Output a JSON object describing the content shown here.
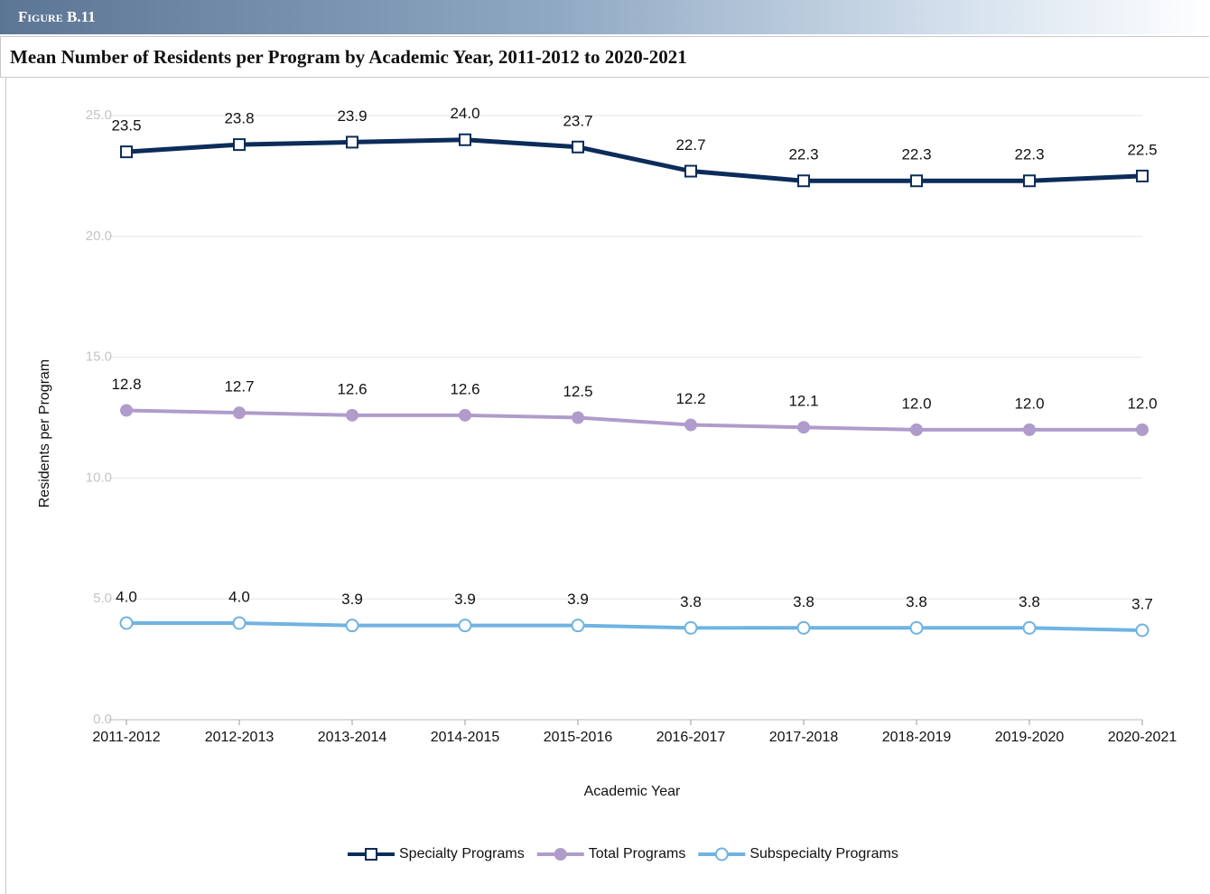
{
  "figure_label": "Figure B.11",
  "chart_data": {
    "type": "line",
    "title": "Mean Number of Residents per Program by Academic Year, 2011-2012 to 2020-2021",
    "x_label": "Academic Year",
    "y_label": "Residents per Program",
    "categories": [
      "2011-2012",
      "2012-2013",
      "2013-2014",
      "2014-2015",
      "2015-2016",
      "2016-2017",
      "2017-2018",
      "2018-2019",
      "2019-2020",
      "2020-2021"
    ],
    "series": [
      {
        "name": "Specialty Programs",
        "color": "#0c2c5a",
        "marker": "square",
        "values": [
          23.5,
          23.8,
          23.9,
          24.0,
          23.7,
          22.7,
          22.3,
          22.3,
          22.3,
          22.5
        ],
        "value_labels": [
          "23.5",
          "23.8",
          "23.9",
          "24.0",
          "23.7",
          "22.7",
          "22.3",
          "22.3",
          "22.3",
          "22.5"
        ]
      },
      {
        "name": "Total Programs",
        "color": "#b09ccb",
        "marker": "filled-circle",
        "values": [
          12.8,
          12.7,
          12.6,
          12.6,
          12.5,
          12.2,
          12.1,
          12.0,
          12.0,
          12.0
        ],
        "value_labels": [
          "12.8",
          "12.7",
          "12.6",
          "12.6",
          "12.5",
          "12.2",
          "12.1",
          "12.0",
          "12.0",
          "12.0"
        ]
      },
      {
        "name": "Subspecialty Programs",
        "color": "#6fb3e2",
        "marker": "hollow-circle",
        "values": [
          4.0,
          4.0,
          3.9,
          3.9,
          3.9,
          3.8,
          3.8,
          3.8,
          3.8,
          3.7
        ],
        "value_labels": [
          "4.0",
          "4.0",
          "3.9",
          "3.9",
          "3.9",
          "3.8",
          "3.8",
          "3.8",
          "3.8",
          "3.7"
        ]
      }
    ],
    "ylim": [
      0,
      25
    ],
    "yticks": [
      {
        "value": 0,
        "label": "0.0"
      },
      {
        "value": 5,
        "label": "5.0"
      },
      {
        "value": 10,
        "label": "10.0"
      },
      {
        "value": 15,
        "label": "15.0"
      },
      {
        "value": 20,
        "label": "20.0"
      },
      {
        "value": 25,
        "label": "25.0"
      }
    ],
    "grid": true,
    "legend": "bottom"
  }
}
